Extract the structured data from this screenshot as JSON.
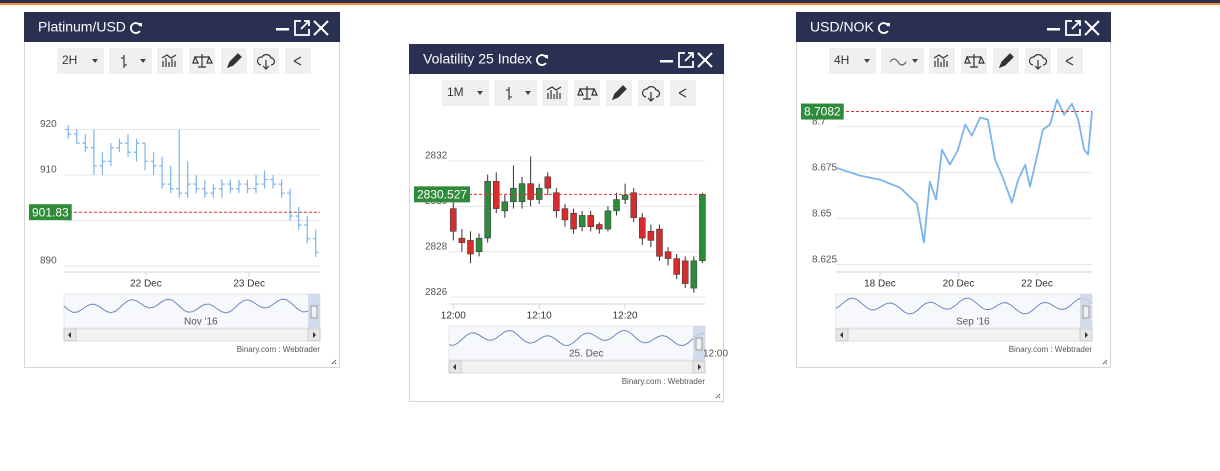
{
  "windows": [
    {
      "title": "Platinum/USD",
      "timeframe": "2H",
      "navigator_labels": [
        "Nov '16"
      ],
      "footer": "Binary.com : Webtrader",
      "chart_data": {
        "type": "ohlc",
        "color": "#7cb5ec",
        "open": [
          920,
          919,
          917,
          916,
          912,
          913,
          916,
          917,
          915,
          917,
          913,
          912,
          908,
          907,
          906,
          908,
          907,
          906,
          907,
          908,
          907,
          908,
          907,
          908,
          909,
          908,
          906,
          901,
          899,
          896
        ],
        "high": [
          921,
          920,
          919,
          920,
          915,
          917,
          918,
          919,
          918,
          917,
          915,
          914,
          912,
          920,
          913,
          910,
          909,
          908,
          909,
          909,
          909,
          909,
          910,
          911,
          910,
          909,
          907,
          903,
          901,
          898
        ],
        "low": [
          918,
          917,
          915,
          910,
          910,
          912,
          915,
          914,
          913,
          911,
          910,
          907,
          906,
          905,
          905,
          906,
          905,
          905,
          905,
          906,
          906,
          906,
          906,
          907,
          907,
          905,
          900,
          898,
          895,
          892
        ],
        "close": [
          919,
          917,
          916,
          912,
          913,
          916,
          917,
          915,
          917,
          913,
          912,
          908,
          907,
          906,
          908,
          907,
          906,
          907,
          908,
          907,
          908,
          907,
          908,
          909,
          908,
          906,
          901,
          899,
          896,
          893
        ],
        "xlim": [
          0,
          30
        ],
        "xticks": [
          {
            "value": 9.6,
            "label": "22 Dec"
          },
          {
            "value": 21.7,
            "label": "23 Dec"
          }
        ],
        "ylim": [
          888.7,
          929.1
        ],
        "yticks": [
          890,
          900,
          910,
          920
        ],
        "grid": true,
        "price": 901.83,
        "price_color": "#e03030",
        "label_color": "#2e8b3a"
      }
    },
    {
      "title": "Volatility 25 Index",
      "timeframe": "1M",
      "navigator_labels": [
        "25. Dec",
        "12:00"
      ],
      "footer": "Binary.com : Webtrader",
      "chart_data": {
        "type": "candlestick",
        "up_color": "#2e8b3a",
        "down_color": "#d62c2c",
        "open": [
          2829.9,
          2828.6,
          2828.5,
          2828.0,
          2828.6,
          2831.1,
          2829.8,
          2830.2,
          2830.2,
          2831.0,
          2830.3,
          2831.3,
          2830.6,
          2829.9,
          2829.7,
          2829.1,
          2829.6,
          2829.2,
          2829.0,
          2829.8,
          2830.3,
          2830.6,
          2829.5,
          2828.9,
          2829.0,
          2828.0,
          2827.7,
          2827.6,
          2826.4,
          2827.6
        ],
        "high": [
          2830.3,
          2829.0,
          2828.9,
          2828.8,
          2831.4,
          2831.5,
          2830.5,
          2831.8,
          2831.3,
          2832.2,
          2831.0,
          2831.5,
          2830.8,
          2830.1,
          2829.9,
          2829.8,
          2829.8,
          2829.3,
          2830.0,
          2830.6,
          2831.0,
          2830.8,
          2829.7,
          2829.2,
          2829.2,
          2828.2,
          2827.9,
          2827.8,
          2827.8,
          2830.6
        ],
        "low": [
          2828.5,
          2828.0,
          2827.5,
          2827.8,
          2828.4,
          2829.7,
          2829.5,
          2829.9,
          2829.9,
          2830.0,
          2830.1,
          2830.5,
          2829.5,
          2829.1,
          2828.8,
          2828.9,
          2828.9,
          2828.8,
          2828.9,
          2829.6,
          2830.1,
          2829.3,
          2828.3,
          2828.2,
          2827.6,
          2827.4,
          2826.8,
          2826.4,
          2826.2,
          2827.5
        ],
        "close": [
          2828.9,
          2828.4,
          2827.9,
          2828.6,
          2831.1,
          2829.9,
          2830.2,
          2830.8,
          2831.0,
          2830.3,
          2830.8,
          2830.8,
          2829.8,
          2829.4,
          2829.0,
          2829.6,
          2829.1,
          2829.0,
          2829.8,
          2830.3,
          2830.5,
          2829.5,
          2828.6,
          2828.5,
          2827.8,
          2827.7,
          2827.0,
          2826.6,
          2827.6,
          2830.527
        ],
        "xlim": [
          -0.5,
          29.3
        ],
        "xticks": [
          {
            "value": 0,
            "label": "12:00"
          },
          {
            "value": 10,
            "label": "12:10"
          },
          {
            "value": 20,
            "label": "12:20"
          }
        ],
        "ylim": [
          2825.7,
          2833.8
        ],
        "yticks": [
          2826,
          2828,
          2830,
          2832
        ],
        "grid": true,
        "price": 2830.527,
        "price_color": "#e03030",
        "label_color": "#2e8b3a"
      }
    },
    {
      "title": "USD/NOK",
      "timeframe": "4H",
      "navigator_labels": [
        "Sep '16"
      ],
      "footer": "Binary.com : Webtrader",
      "chart_data": {
        "type": "line",
        "color": "#7cb5ec",
        "x": [
          16.88,
          17.49,
          18.0,
          18.51,
          18.94,
          19.12,
          19.27,
          19.43,
          19.58,
          19.78,
          19.99,
          20.17,
          20.34,
          20.55,
          20.75,
          20.93,
          21.13,
          21.36,
          21.52,
          21.7,
          21.82,
          21.98,
          22.15,
          22.33,
          22.51,
          22.69,
          22.89,
          23.05,
          23.2,
          23.3,
          23.4
        ],
        "values": [
          8.6777,
          8.6734,
          8.6712,
          8.6668,
          8.6582,
          8.637,
          8.6701,
          8.6603,
          8.6875,
          8.6793,
          8.6875,
          8.7011,
          8.6951,
          8.7049,
          8.7038,
          8.6821,
          8.6723,
          8.6587,
          8.6712,
          8.6793,
          8.6674,
          8.6821,
          8.6984,
          8.7011,
          8.7147,
          8.7065,
          8.7125,
          8.7038,
          8.6875,
          8.6848,
          8.7082
        ],
        "xlim": [
          16.88,
          23.4
        ],
        "xticks": [
          {
            "value": 18,
            "label": "18 Dec"
          },
          {
            "value": 20,
            "label": "20 Dec"
          },
          {
            "value": 22,
            "label": "22 Dec"
          }
        ],
        "ylim": [
          8.621,
          8.721
        ],
        "yticks": [
          8.625,
          8.65,
          8.675,
          8.7
        ],
        "grid": true,
        "price": 8.7082,
        "price_color": "#e03030",
        "label_color": "#2e8b3a"
      }
    }
  ]
}
